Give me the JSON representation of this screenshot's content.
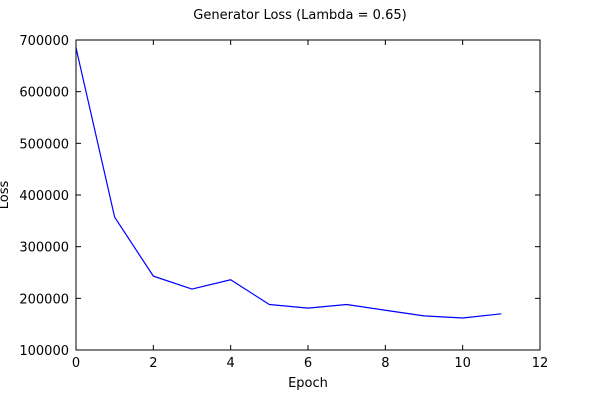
{
  "chart_data": {
    "type": "line",
    "title": "Generator Loss (Lambda = 0.65)",
    "xlabel": "Epoch",
    "ylabel": "Loss",
    "xlim": [
      0,
      12
    ],
    "ylim": [
      100000,
      700000
    ],
    "x_ticks": [
      0,
      2,
      4,
      6,
      8,
      10,
      12
    ],
    "y_ticks": [
      100000,
      200000,
      300000,
      400000,
      500000,
      600000,
      700000
    ],
    "grid": false,
    "series": [
      {
        "color": "#0000ff",
        "x": [
          0,
          1,
          2,
          3,
          4,
          5,
          6,
          7,
          8,
          9,
          10,
          11
        ],
        "values": [
          685000,
          357000,
          243000,
          218000,
          236000,
          188000,
          181000,
          188000,
          177000,
          166000,
          162000,
          170000
        ]
      }
    ]
  }
}
